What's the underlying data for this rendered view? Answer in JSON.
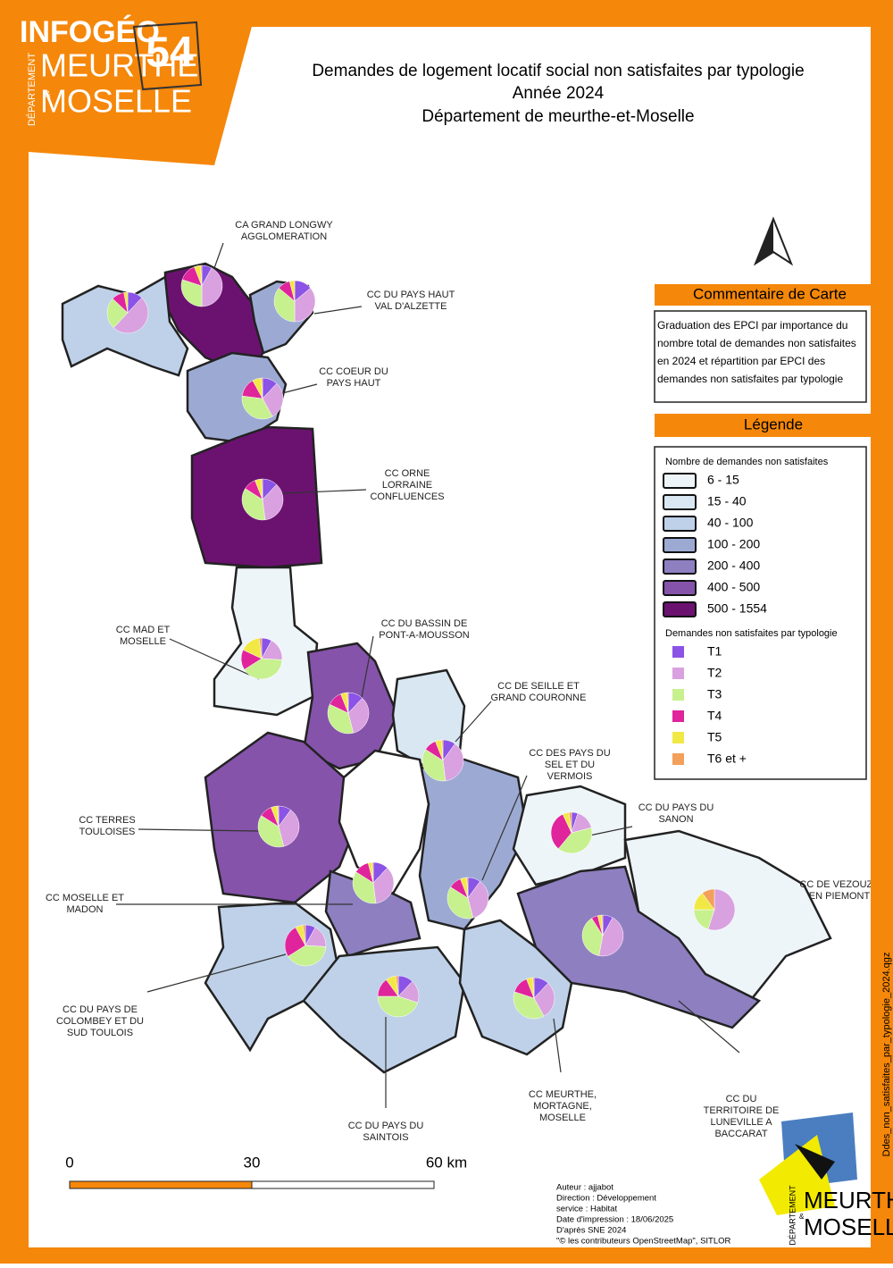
{
  "header": {
    "logo": {
      "brand": "INFOGÉO",
      "dept": "DÉPARTEMENT",
      "name1": "MEURTHE",
      "amp": "&",
      "name2": "MOSELLE",
      "number": "54"
    },
    "title": [
      "Demandes de logement locatif social non satisfaites par typologie",
      "Année 2024",
      "Département de meurthe-et-Moselle"
    ]
  },
  "comment": {
    "heading": "Commentaire de Carte",
    "text": [
      "Graduation des EPCI par importance du",
      "nombre total de demandes non satisfaites",
      "en 2024 et répartition par EPCI des",
      "demandes non satisfaites par typologie"
    ]
  },
  "legend": {
    "heading": "Légende",
    "classes_title": "Nombre de demandes non satisfaites",
    "classes": [
      {
        "label": "6 - 15",
        "color": "#eef5f9"
      },
      {
        "label": "15 - 40",
        "color": "#d8e7f2"
      },
      {
        "label": "40 - 100",
        "color": "#bed1e8"
      },
      {
        "label": "100 - 200",
        "color": "#9caad3"
      },
      {
        "label": "200 - 400",
        "color": "#8d7fc0"
      },
      {
        "label": "400 - 500",
        "color": "#8553aa"
      },
      {
        "label": "500 - 1554",
        "color": "#6b1270"
      }
    ],
    "typology_title": "Demandes non satisfaites par typologie",
    "typology": [
      {
        "label": "T1",
        "color": "#8b53e6"
      },
      {
        "label": "T2",
        "color": "#d9a1e0"
      },
      {
        "label": "T3",
        "color": "#c7f08f"
      },
      {
        "label": "T4",
        "color": "#e0249c"
      },
      {
        "label": "T5",
        "color": "#f2e845"
      },
      {
        "label": "T6 et +",
        "color": "#f2a05a"
      }
    ]
  },
  "epcis": [
    {
      "name": [
        "CA GRAND LONGWY",
        "AGGLOMERATION"
      ],
      "color": "#6b1270",
      "values": [
        8,
        42,
        30,
        14,
        5,
        1
      ]
    },
    {
      "name": null,
      "color": "#bed1e8",
      "values": [
        12,
        50,
        25,
        10,
        3,
        0
      ]
    },
    {
      "name": [
        "CC DU PAYS HAUT",
        "VAL D'ALZETTE"
      ],
      "color": "#9caad3",
      "values": [
        14,
        36,
        36,
        10,
        4,
        0
      ]
    },
    {
      "name": [
        "CC COEUR DU",
        "PAYS HAUT"
      ],
      "color": "#9caad3",
      "values": [
        12,
        30,
        35,
        15,
        7,
        1
      ]
    },
    {
      "name": [
        "CC ORNE",
        "LORRAINE",
        "CONFLUENCES"
      ],
      "color": "#6b1270",
      "values": [
        12,
        36,
        36,
        10,
        5,
        1
      ]
    },
    {
      "name": [
        "CC MAD ET",
        "MOSELLE"
      ],
      "color": "#eef5f9",
      "values": [
        8,
        18,
        40,
        16,
        16,
        2
      ]
    },
    {
      "name": [
        "CC DU BASSIN DE",
        "PONT-A-MOUSSON"
      ],
      "color": "#8553aa",
      "values": [
        12,
        34,
        36,
        12,
        5,
        1
      ]
    },
    {
      "name": [
        "CC DE SEILLE ET",
        "GRAND COURONNE"
      ],
      "color": "#d8e7f2",
      "values": [
        10,
        38,
        36,
        10,
        5,
        1
      ]
    },
    {
      "name": [
        "CC DES PAYS DU",
        "SEL ET DU",
        "VERMOIS"
      ],
      "color": "#9caad3",
      "values": [
        10,
        36,
        38,
        10,
        5,
        1
      ]
    },
    {
      "name": [
        "CC DU PAYS DU",
        "SANON"
      ],
      "color": "#eef5f9",
      "values": [
        5,
        16,
        40,
        32,
        5,
        2
      ]
    },
    {
      "name": [
        "CC DE VEZOUZE",
        "EN PIEMONT"
      ],
      "color": "#eef5f9",
      "values": [
        0,
        55,
        20,
        0,
        15,
        10
      ]
    },
    {
      "name": [
        "CC TERRES",
        "TOULOISES"
      ],
      "color": "#8553aa",
      "values": [
        10,
        36,
        38,
        10,
        5,
        1
      ]
    },
    {
      "name": [
        "CC MOSELLE ET",
        "MADON"
      ],
      "color": "#8d7fc0",
      "values": [
        12,
        36,
        36,
        12,
        3,
        1
      ]
    },
    {
      "name": [
        "CC DU PAYS DE",
        "COLOMBEY ET DU",
        "SUD TOULOIS"
      ],
      "color": "#bed1e8",
      "values": [
        8,
        18,
        40,
        26,
        6,
        2
      ]
    },
    {
      "name": [
        "CC DU PAYS DU",
        "SAINTOIS"
      ],
      "color": "#bed1e8",
      "values": [
        12,
        18,
        45,
        15,
        8,
        2
      ]
    },
    {
      "name": [
        "CC MEURTHE,",
        "MORTAGNE,",
        "MOSELLE"
      ],
      "color": "#bed1e8",
      "values": [
        12,
        30,
        38,
        14,
        5,
        1
      ]
    },
    {
      "name": [
        "CC DU",
        "TERRITOIRE DE",
        "LUNEVILLE A",
        "BACCARAT"
      ],
      "color": "#8d7fc0",
      "values": [
        8,
        45,
        38,
        5,
        3,
        1
      ]
    },
    {
      "name": null,
      "color": "#ffffff",
      "values": null
    }
  ],
  "scale": {
    "labels": [
      "0",
      "30",
      "60 km"
    ]
  },
  "credits": [
    "Auteur : ajjabot",
    "Direction : Développement",
    "service : Habitat",
    "Date d'impression : 18/06/2025",
    "D'après SNE 2024",
    "\"© les contributeurs OpenStreetMap\", SITLOR"
  ],
  "file": "Ddes_non_satisfaites_par_typologie_2024.qgz",
  "footer_logo": {
    "dept": "DÉPARTEMENT",
    "name1": "MEURTHE",
    "amp": "&",
    "name2": "MOSELLE"
  }
}
